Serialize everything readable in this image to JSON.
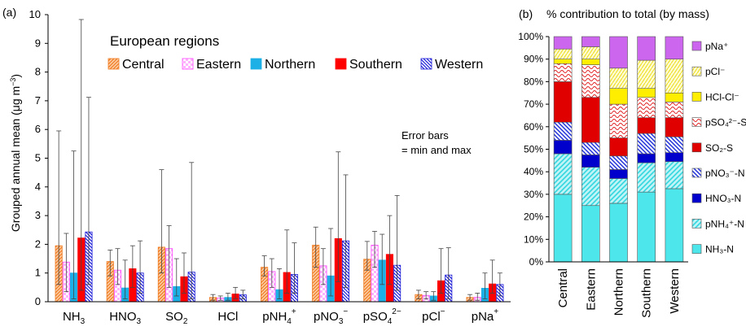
{
  "chart_data": [
    {
      "type": "bar",
      "panel_label": "(a)",
      "legend_title": "European regions",
      "ylabel": "Grouped annual mean (μg m⁻³)",
      "ylim": [
        0,
        10
      ],
      "yticks": [
        "0",
        "1",
        "2",
        "3",
        "4",
        "5",
        "6",
        "7",
        "8",
        "9",
        "10"
      ],
      "note_lines": [
        "Error bars",
        "= min and max"
      ],
      "categories": [
        {
          "base": "NH",
          "sub": "3",
          "sup": ""
        },
        {
          "base": "HNO",
          "sub": "3",
          "sup": ""
        },
        {
          "base": "SO",
          "sub": "2",
          "sup": ""
        },
        {
          "base": "HCl",
          "sub": "",
          "sup": ""
        },
        {
          "base": "pNH",
          "sub": "4",
          "sup": "+"
        },
        {
          "base": "pNO",
          "sub": "3",
          "sup": "−"
        },
        {
          "base": "pSO",
          "sub": "4",
          "sup": "2−"
        },
        {
          "base": "pCl",
          "sub": "",
          "sup": "−"
        },
        {
          "base": "pNa",
          "sub": "",
          "sup": "+"
        }
      ],
      "series": [
        {
          "name": "Central",
          "color": "#f79646",
          "pattern": "diag-right",
          "values": [
            1.95,
            1.4,
            1.9,
            0.15,
            1.2,
            1.97,
            1.48,
            0.25,
            0.15
          ],
          "min": [
            0.6,
            0.9,
            1.0,
            0.05,
            0.9,
            1.2,
            1.1,
            0.1,
            0.05
          ],
          "max": [
            5.95,
            1.8,
            4.6,
            0.25,
            1.6,
            2.6,
            2.1,
            0.4,
            0.25
          ]
        },
        {
          "name": "Eastern",
          "color": "#ff66ff",
          "pattern": "checker",
          "values": [
            1.38,
            1.1,
            1.85,
            0.13,
            1.05,
            1.25,
            1.97,
            0.22,
            0.15
          ],
          "min": [
            0.35,
            0.6,
            0.5,
            0.05,
            0.5,
            0.6,
            1.2,
            0.1,
            0.05
          ],
          "max": [
            2.38,
            1.85,
            2.65,
            0.2,
            1.5,
            1.85,
            2.45,
            0.35,
            0.3
          ]
        },
        {
          "name": "Northern",
          "color": "#1cb0e6",
          "pattern": "solid",
          "values": [
            1.0,
            0.48,
            0.53,
            0.15,
            0.42,
            0.9,
            1.45,
            0.2,
            0.47
          ],
          "min": [
            0.1,
            0.1,
            0.2,
            0.05,
            0.1,
            0.2,
            0.6,
            0.05,
            0.1
          ],
          "max": [
            5.25,
            1.45,
            1.5,
            0.3,
            1.15,
            2.55,
            2.35,
            0.35,
            1.0
          ]
        },
        {
          "name": "Southern",
          "color": "#ff0000",
          "pattern": "solid",
          "values": [
            2.22,
            1.15,
            0.87,
            0.27,
            1.02,
            2.2,
            1.65,
            0.73,
            0.62
          ],
          "min": [
            0.4,
            0.5,
            0.3,
            0.1,
            0.3,
            0.7,
            0.6,
            0.3,
            0.3
          ],
          "max": [
            9.83,
            1.95,
            1.7,
            0.5,
            2.5,
            5.22,
            3.0,
            1.85,
            1.45
          ]
        },
        {
          "name": "Western",
          "color": "#2222dd",
          "pattern": "diag-left",
          "values": [
            2.43,
            1.0,
            1.03,
            0.24,
            0.95,
            2.12,
            1.27,
            0.93,
            0.6
          ],
          "min": [
            0.6,
            0.3,
            0.1,
            0.1,
            0.3,
            0.5,
            0.4,
            0.1,
            0.2
          ],
          "max": [
            7.12,
            2.12,
            4.85,
            0.4,
            2.05,
            4.42,
            3.7,
            1.88,
            1.0
          ]
        }
      ]
    },
    {
      "type": "bar",
      "stacked": true,
      "percent": true,
      "panel_label": "(b)",
      "title": "% contribution to total (by mass)",
      "categories": [
        "Central",
        "Eastern",
        "Northern",
        "Southern",
        "Western"
      ],
      "yticks": [
        "0%",
        "10%",
        "20%",
        "30%",
        "40%",
        "50%",
        "60%",
        "70%",
        "80%",
        "90%",
        "100%"
      ],
      "ylim": [
        0,
        100
      ],
      "series": [
        {
          "name": "NH₃-N",
          "color": "#4de6ea",
          "pattern": "solid",
          "values": [
            30,
            25,
            26,
            31,
            32.5
          ]
        },
        {
          "name": "pNH₄⁺-N",
          "color": "#7fe8ee",
          "pattern": "diag-right",
          "values": [
            18,
            17,
            11,
            13,
            12
          ]
        },
        {
          "name": "HNO₃-N",
          "color": "#0000cc",
          "pattern": "solid",
          "values": [
            6,
            5.5,
            4,
            4,
            4
          ]
        },
        {
          "name": "pNO₃⁻-N",
          "color": "#2a3edb",
          "pattern": "diag-left",
          "values": [
            8,
            5.5,
            6,
            9,
            7
          ]
        },
        {
          "name": "SO₂-S",
          "color": "#e00000",
          "pattern": "solid",
          "values": [
            18,
            20,
            8,
            7,
            8.5
          ]
        },
        {
          "name": "pSO₄²⁻-S",
          "color": "#e83030",
          "pattern": "waves",
          "values": [
            8,
            14.5,
            15,
            9,
            7
          ]
        },
        {
          "name": "HCl-Cl⁻",
          "color": "#ffee00",
          "pattern": "solid",
          "values": [
            2,
            2.5,
            7,
            4,
            4
          ]
        },
        {
          "name": "pCl⁻",
          "color": "#fff59a",
          "pattern": "hatch-yellow",
          "values": [
            4.5,
            5.5,
            9,
            12.5,
            15
          ]
        },
        {
          "name": "pNa⁺",
          "color": "#cc66ee",
          "pattern": "solid",
          "values": [
            5.5,
            4.5,
            14,
            10.5,
            10
          ]
        }
      ]
    }
  ]
}
